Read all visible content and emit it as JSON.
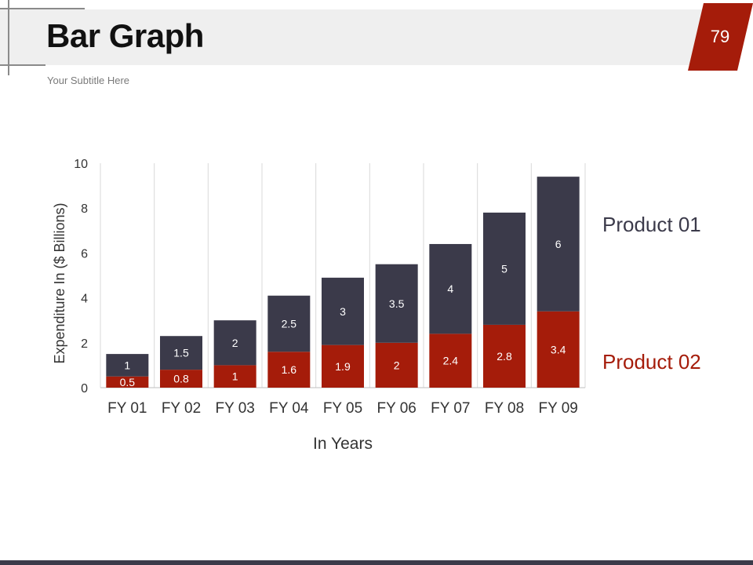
{
  "header": {
    "title": "Bar Graph",
    "subtitle": "Your Subtitle Here",
    "page_number": "79"
  },
  "colors": {
    "accent": "#a51c0a",
    "dark": "#3b3a4a",
    "header_band": "#efefef"
  },
  "legend": {
    "product_01": "Product 01",
    "product_02": "Product 02"
  },
  "chart_data": {
    "type": "bar",
    "stacked": true,
    "title": "",
    "xlabel": "In Years",
    "ylabel": "Expenditure In ($ Billions)",
    "ylim": [
      0,
      10
    ],
    "yticks": [
      0,
      2,
      4,
      6,
      8,
      10
    ],
    "categories": [
      "FY 01",
      "FY 02",
      "FY 03",
      "FY 04",
      "FY 05",
      "FY 06",
      "FY 07",
      "FY 08",
      "FY 09"
    ],
    "series": [
      {
        "name": "Product 02",
        "color": "#a51c0a",
        "values": [
          0.5,
          0.8,
          1,
          1.6,
          1.9,
          2,
          2.4,
          2.8,
          3.4
        ]
      },
      {
        "name": "Product 01",
        "color": "#3b3a4a",
        "values": [
          1,
          1.5,
          2,
          2.5,
          3,
          3.5,
          4,
          5,
          6
        ]
      }
    ],
    "grid": "vertical",
    "legend_position": "right"
  }
}
